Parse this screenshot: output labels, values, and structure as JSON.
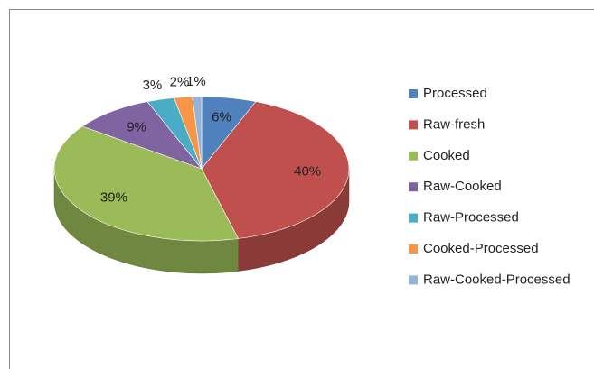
{
  "chart_data": {
    "type": "pie3d",
    "categories": [
      "Processed",
      "Raw-fresh",
      "Cooked",
      "Raw-Cooked",
      "Raw-Processed",
      "Cooked-Processed",
      "Raw-Cooked-Processed"
    ],
    "values": [
      6,
      40,
      39,
      9,
      3,
      2,
      1
    ],
    "value_labels": [
      "6%",
      "40%",
      "39%",
      "9%",
      "3%",
      "2%",
      "1%"
    ],
    "colors": [
      "#4f81bd",
      "#c0504d",
      "#9bbb59",
      "#8064a2",
      "#4bacc6",
      "#f79646",
      "#95b3d7"
    ],
    "legend": "right"
  }
}
